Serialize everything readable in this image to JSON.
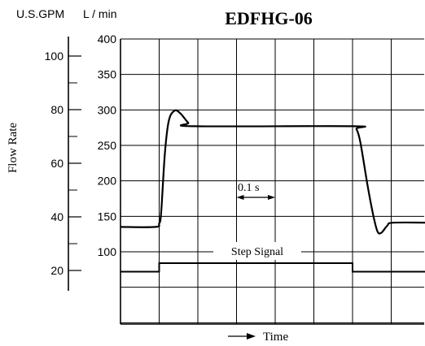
{
  "chart_data": {
    "type": "line",
    "title": "EDFHG-06",
    "xlabel": "Time",
    "ylabel": "Flow Rate",
    "unit_left": "U.S.GPM",
    "unit_right": "L / min",
    "gpm_ticks": [
      "100",
      "80",
      "60",
      "40",
      "20"
    ],
    "lmin_ticks": [
      "400",
      "350",
      "300",
      "250",
      "200",
      "150",
      "100"
    ],
    "ylim_lmin": [
      50,
      400
    ],
    "xlim_div": [
      0,
      8
    ],
    "grid": true,
    "annotations": {
      "time_scale": "0.1 s",
      "step_signal": "Step Signal"
    },
    "series": [
      {
        "values": [
          [
            0.0,
            135
          ],
          [
            0.9,
            135
          ],
          [
            1.0,
            140
          ],
          [
            1.05,
            155
          ],
          [
            1.15,
            240
          ],
          [
            1.25,
            285
          ],
          [
            1.4,
            299
          ],
          [
            1.55,
            295
          ],
          [
            1.75,
            282
          ],
          [
            1.9,
            277
          ],
          [
            6.0,
            277
          ],
          [
            6.1,
            273
          ],
          [
            6.2,
            255
          ],
          [
            6.4,
            190
          ],
          [
            6.55,
            148
          ],
          [
            6.65,
            128
          ],
          [
            6.75,
            127
          ],
          [
            6.9,
            137
          ],
          [
            7.05,
            141
          ],
          [
            8.0,
            141
          ]
        ]
      }
    ],
    "step_signal_level": [
      [
        0.0,
        72
      ],
      [
        1.0,
        72
      ],
      [
        1.0,
        84
      ],
      [
        6.0,
        84
      ],
      [
        6.0,
        72
      ],
      [
        8.0,
        72
      ]
    ]
  }
}
